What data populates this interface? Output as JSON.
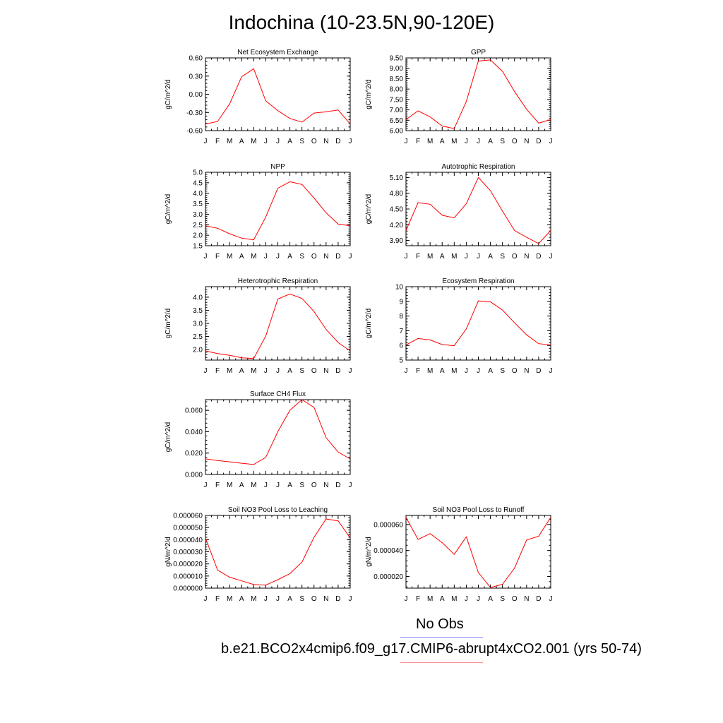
{
  "page_title": "Indochina (10-23.5N,90-120E)",
  "legend": {
    "obs_label": "No Obs",
    "obs_color": "#8c8cff",
    "model_label": "b.e21.BCO2x4cmip6.f09_g17.CMIP6-abrupt4xCO2.001 (yrs 50-74)",
    "model_color": "#ff8c8c"
  },
  "chart_data": [
    {
      "type": "line",
      "title": "Net Ecosystem Exchange",
      "ylabel": "gC/m^2/d",
      "x": [
        "J",
        "F",
        "M",
        "A",
        "M",
        "J",
        "J",
        "A",
        "S",
        "O",
        "N",
        "D",
        "J"
      ],
      "ylim": [
        -0.6,
        0.6
      ],
      "yticks": [
        "0.60",
        "0.30",
        "0.00",
        "-0.30",
        "-0.60"
      ],
      "ytick_values": [
        0.6,
        0.3,
        0.0,
        -0.3,
        -0.6
      ],
      "series": [
        {
          "color": "#ff0000",
          "values": [
            -0.49,
            -0.45,
            -0.16,
            0.29,
            0.42,
            -0.11,
            -0.27,
            -0.4,
            -0.46,
            -0.31,
            -0.29,
            -0.26,
            -0.49
          ]
        }
      ]
    },
    {
      "type": "line",
      "title": "GPP",
      "ylabel": "gC/m^2/d",
      "x": [
        "J",
        "F",
        "M",
        "A",
        "M",
        "J",
        "J",
        "A",
        "S",
        "O",
        "N",
        "D",
        "J"
      ],
      "ylim": [
        6.0,
        9.5
      ],
      "yticks": [
        "9.50",
        "9.00",
        "8.50",
        "8.00",
        "7.50",
        "7.00",
        "6.50",
        "6.00"
      ],
      "ytick_values": [
        9.5,
        9.0,
        8.5,
        8.0,
        7.5,
        7.0,
        6.5,
        6.0
      ],
      "series": [
        {
          "color": "#ff0000",
          "values": [
            6.53,
            6.95,
            6.66,
            6.22,
            6.1,
            7.4,
            9.35,
            9.4,
            8.85,
            7.88,
            7.03,
            6.36,
            6.53
          ]
        }
      ]
    },
    {
      "type": "line",
      "title": "NPP",
      "ylabel": "gC/m^2/d",
      "x": [
        "J",
        "F",
        "M",
        "A",
        "M",
        "J",
        "J",
        "A",
        "S",
        "O",
        "N",
        "D",
        "J"
      ],
      "ylim": [
        1.5,
        5.0
      ],
      "yticks": [
        "5.0",
        "4.5",
        "4.0",
        "3.5",
        "3.0",
        "2.5",
        "2.0",
        "1.5"
      ],
      "ytick_values": [
        5.0,
        4.5,
        4.0,
        3.5,
        3.0,
        2.5,
        2.0,
        1.5
      ],
      "series": [
        {
          "color": "#ff0000",
          "values": [
            2.45,
            2.33,
            2.07,
            1.86,
            1.78,
            2.87,
            4.24,
            4.55,
            4.42,
            3.77,
            3.07,
            2.53,
            2.45
          ]
        }
      ]
    },
    {
      "type": "line",
      "title": "Autotrophic Respiration",
      "ylabel": "gC/m^2/d",
      "x": [
        "J",
        "F",
        "M",
        "A",
        "M",
        "J",
        "J",
        "A",
        "S",
        "O",
        "N",
        "D",
        "J"
      ],
      "ylim": [
        3.8,
        5.2
      ],
      "yticks": [
        "5.10",
        "4.80",
        "4.50",
        "4.20",
        "3.90"
      ],
      "ytick_values": [
        5.1,
        4.8,
        4.5,
        4.2,
        3.9
      ],
      "series": [
        {
          "color": "#ff0000",
          "values": [
            4.09,
            4.62,
            4.59,
            4.38,
            4.33,
            4.6,
            5.1,
            4.85,
            4.46,
            4.09,
            3.96,
            3.84,
            4.09
          ]
        }
      ]
    },
    {
      "type": "line",
      "title": "Heterotrophic Respiration",
      "ylabel": "gC/m^2/d",
      "x": [
        "J",
        "F",
        "M",
        "A",
        "M",
        "J",
        "J",
        "A",
        "S",
        "O",
        "N",
        "D",
        "J"
      ],
      "ylim": [
        1.6,
        4.4
      ],
      "yticks": [
        "4.0",
        "3.5",
        "3.0",
        "2.5",
        "2.0"
      ],
      "ytick_values": [
        4.0,
        3.5,
        3.0,
        2.5,
        2.0
      ],
      "series": [
        {
          "color": "#ff0000",
          "values": [
            1.95,
            1.85,
            1.78,
            1.69,
            1.66,
            2.52,
            3.93,
            4.12,
            3.95,
            3.45,
            2.77,
            2.27,
            1.95
          ]
        }
      ]
    },
    {
      "type": "line",
      "title": "Ecosystem Respiration",
      "ylabel": "gC/m^2/d",
      "x": [
        "J",
        "F",
        "M",
        "A",
        "M",
        "J",
        "J",
        "A",
        "S",
        "O",
        "N",
        "D",
        "J"
      ],
      "ylim": [
        5,
        10
      ],
      "yticks": [
        "10",
        "9",
        "8",
        "7",
        "6",
        "5"
      ],
      "ytick_values": [
        10,
        9,
        8,
        7,
        6,
        5
      ],
      "series": [
        {
          "color": "#ff0000",
          "values": [
            6.03,
            6.47,
            6.37,
            6.06,
            5.98,
            7.12,
            9.03,
            8.97,
            8.41,
            7.54,
            6.72,
            6.12,
            6.03
          ]
        }
      ]
    },
    {
      "type": "line",
      "title": "Surface CH4 Flux",
      "ylabel": "gC/m^2/d",
      "x": [
        "J",
        "F",
        "M",
        "A",
        "M",
        "J",
        "J",
        "A",
        "S",
        "O",
        "N",
        "D",
        "J"
      ],
      "ylim": [
        0.0,
        0.07
      ],
      "yticks": [
        "0.060",
        "0.040",
        "0.020",
        "0.000"
      ],
      "ytick_values": [
        0.06,
        0.04,
        0.02,
        0.0
      ],
      "series": [
        {
          "color": "#ff0000",
          "values": [
            0.0145,
            0.013,
            0.0118,
            0.0105,
            0.0093,
            0.016,
            0.04,
            0.06,
            0.07,
            0.0627,
            0.0345,
            0.021,
            0.0145
          ]
        }
      ]
    },
    {
      "type": "line",
      "title": "Soil NO3 Pool Loss to Leaching",
      "ylabel": "gN/m^2/d",
      "x": [
        "J",
        "F",
        "M",
        "A",
        "M",
        "J",
        "J",
        "A",
        "S",
        "O",
        "N",
        "D",
        "J"
      ],
      "ylim": [
        0.0,
        6e-05
      ],
      "yticks": [
        "0.000060",
        "0.000050",
        "0.000040",
        "0.000030",
        "0.000020",
        "0.000010",
        "0.000000"
      ],
      "ytick_values": [
        6e-05,
        5e-05,
        4e-05,
        3e-05,
        2e-05,
        1e-05,
        0.0
      ],
      "series": [
        {
          "color": "#ff0000",
          "values": [
            4.15e-05,
            1.5e-05,
            9e-06,
            6e-06,
            3e-06,
            2.5e-06,
            7e-06,
            1.2e-05,
            2.15e-05,
            4.2e-05,
            5.7e-05,
            5.55e-05,
            4.15e-05
          ]
        }
      ]
    },
    {
      "type": "line",
      "title": "Soil NO3 Pool Loss to Runoff",
      "ylabel": "gN/m^2/d",
      "x": [
        "J",
        "F",
        "M",
        "A",
        "M",
        "J",
        "J",
        "A",
        "S",
        "O",
        "N",
        "D",
        "J"
      ],
      "ylim": [
        1.1e-05,
        6.7e-05
      ],
      "yticks": [
        "0.000060",
        "0.000040",
        "0.000020"
      ],
      "ytick_values": [
        6e-05,
        4e-05,
        2e-05
      ],
      "series": [
        {
          "color": "#ff0000",
          "values": [
            6.55e-05,
            4.85e-05,
            5.3e-05,
            4.6e-05,
            3.7e-05,
            5.05e-05,
            2.3e-05,
            1.15e-05,
            1.4e-05,
            2.65e-05,
            4.8e-05,
            5.1e-05,
            6.55e-05
          ]
        }
      ]
    }
  ]
}
